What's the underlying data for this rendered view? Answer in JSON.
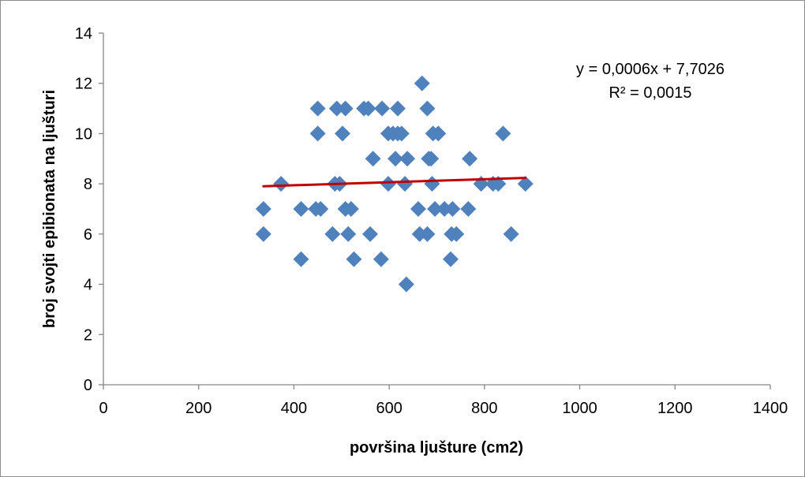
{
  "chart_data": {
    "type": "scatter",
    "title": "",
    "xlabel": "površina ljušture (cm2)",
    "ylabel": "broj svojti epibionata na ljušturi",
    "xlim": [
      0,
      1400
    ],
    "ylim": [
      0,
      14
    ],
    "x_ticks": [
      0,
      200,
      400,
      600,
      800,
      1000,
      1200,
      1400
    ],
    "y_ticks": [
      0,
      2,
      4,
      6,
      8,
      10,
      12,
      14
    ],
    "grid": false,
    "legend": "none",
    "marker_color": "#4f81bd",
    "trendline": {
      "color": "#c00000",
      "slope": 0.0006,
      "intercept": 7.7026,
      "x_range": [
        336,
        886
      ],
      "equation": "y = 0,0006x + 7,7026",
      "r_squared": "R² = 0,0015"
    },
    "points": [
      [
        336,
        7
      ],
      [
        336,
        6
      ],
      [
        373,
        8
      ],
      [
        415,
        7
      ],
      [
        415,
        5
      ],
      [
        446,
        7
      ],
      [
        450,
        11
      ],
      [
        450,
        10
      ],
      [
        456,
        7
      ],
      [
        481,
        6
      ],
      [
        486,
        8
      ],
      [
        490,
        11
      ],
      [
        496,
        8
      ],
      [
        502,
        10
      ],
      [
        508,
        11
      ],
      [
        508,
        7
      ],
      [
        514,
        6
      ],
      [
        520,
        7
      ],
      [
        526,
        5
      ],
      [
        547,
        11
      ],
      [
        556,
        11
      ],
      [
        560,
        6
      ],
      [
        566,
        9
      ],
      [
        583,
        5
      ],
      [
        585,
        11
      ],
      [
        598,
        8
      ],
      [
        598,
        10
      ],
      [
        608,
        10
      ],
      [
        613,
        9
      ],
      [
        618,
        10
      ],
      [
        618,
        11
      ],
      [
        626,
        10
      ],
      [
        633,
        8
      ],
      [
        636,
        4
      ],
      [
        638,
        9
      ],
      [
        661,
        7
      ],
      [
        664,
        6
      ],
      [
        669,
        12
      ],
      [
        680,
        6
      ],
      [
        680,
        11
      ],
      [
        683,
        9
      ],
      [
        688,
        9
      ],
      [
        690,
        8
      ],
      [
        692,
        10
      ],
      [
        696,
        7
      ],
      [
        703,
        10
      ],
      [
        716,
        7
      ],
      [
        729,
        5
      ],
      [
        731,
        6
      ],
      [
        733,
        7
      ],
      [
        741,
        6
      ],
      [
        766,
        7
      ],
      [
        769,
        9
      ],
      [
        793,
        8
      ],
      [
        818,
        8
      ],
      [
        829,
        8
      ],
      [
        839,
        10
      ],
      [
        856,
        6
      ],
      [
        886,
        8
      ]
    ]
  }
}
